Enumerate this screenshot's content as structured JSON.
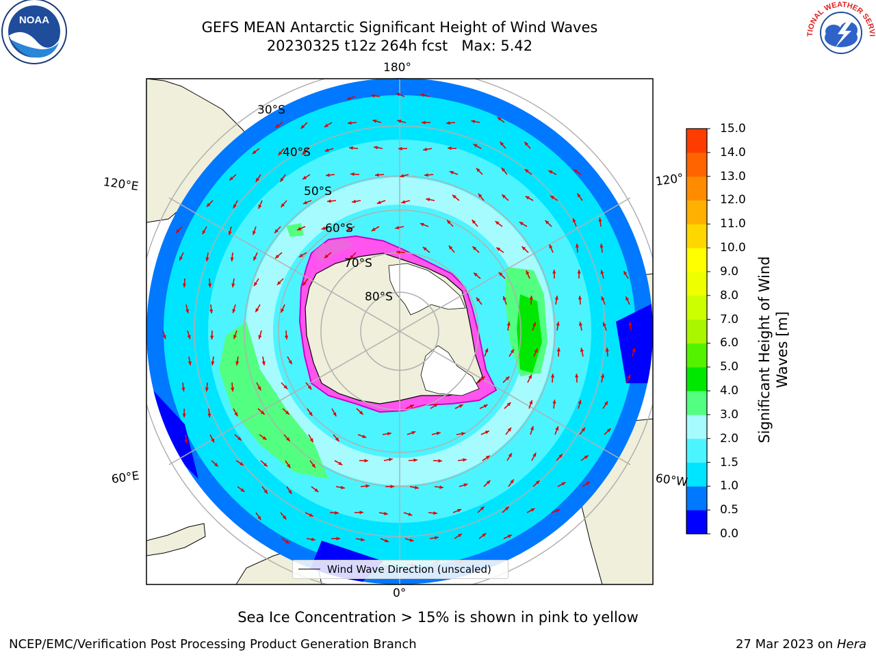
{
  "title": {
    "line1": "GEFS MEAN Antarctic Significant Height of Wind Waves",
    "line2": "20230325 t12z 264h fcst   Max: 5.42"
  },
  "logos": {
    "left": {
      "text": "NOAA",
      "icon": "noaa-logo"
    },
    "right": {
      "text": "NATIONAL WEATHER SERVICE",
      "icon": "nws-logo"
    }
  },
  "map": {
    "longitude_labels": {
      "top": "180°",
      "bottom": "0°",
      "left_upper": "120°E",
      "left_lower": "60°E",
      "right_upper": "120°",
      "right_lower": "60°W"
    },
    "latitude_labels": [
      "30°S",
      "40°S",
      "50°S",
      "60°S",
      "70°S",
      "80°S"
    ],
    "legend_label": "Wind Wave Direction (unscaled)"
  },
  "colorbar": {
    "label": "Significant Height of Wind Waves [m]",
    "ticks": [
      "15.0",
      "14.0",
      "13.0",
      "12.0",
      "11.0",
      "10.0",
      "9.0",
      "8.0",
      "7.0",
      "6.0",
      "5.0",
      "4.0",
      "3.0",
      "2.0",
      "1.5",
      "1.0",
      "0.5",
      "0.0"
    ],
    "colors": [
      "#0000ff",
      "#0078ff",
      "#00e5ff",
      "#4cf4ff",
      "#a6fbff",
      "#53ff80",
      "#00e800",
      "#55f200",
      "#aaf500",
      "#ccff00",
      "#eeff00",
      "#ffff00",
      "#ffd700",
      "#ffb000",
      "#ff8c00",
      "#ff6400",
      "#ff3c00",
      "#ff0000"
    ]
  },
  "caption": "Sea Ice Concentration > 15% is shown in pink to yellow",
  "footer": {
    "left": "NCEP/EMC/Verification Post Processing Product Generation Branch",
    "right_date": "27 Mar 2023 on",
    "right_host": "Hera"
  }
}
